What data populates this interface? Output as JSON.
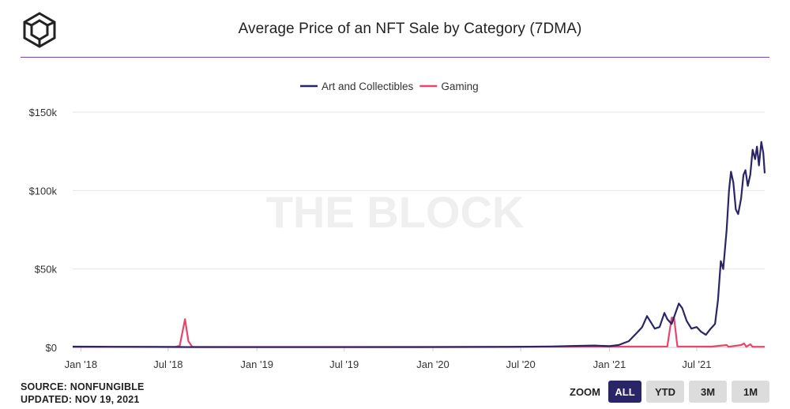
{
  "header": {
    "title": "Average Price of an NFT Sale by Category (7DMA)",
    "logo_icon": "cube-logo-icon"
  },
  "watermark": "THE BLOCK",
  "footer": {
    "source": "SOURCE: NONFUNGIBLE",
    "updated": "UPDATED: NOV 19, 2021"
  },
  "zoom": {
    "label": "ZOOM",
    "buttons": [
      "ALL",
      "YTD",
      "3M",
      "1M"
    ],
    "active": "ALL"
  },
  "colors": {
    "art": "#2a2566",
    "gaming": "#e8456b",
    "accent_line": "#8e2fd0"
  },
  "chart_data": {
    "type": "line",
    "title": "Average Price of an NFT Sale by Category (7DMA)",
    "xlabel": "",
    "ylabel": "",
    "ylim": [
      0,
      150000
    ],
    "xlim": [
      "2017-12-15",
      "2021-11-19"
    ],
    "y_ticks": [
      0,
      50000,
      100000,
      150000
    ],
    "y_tick_labels": [
      "$0",
      "$50k",
      "$100k",
      "$150k"
    ],
    "x_ticks": [
      "2018-01-01",
      "2018-07-01",
      "2019-01-01",
      "2019-07-01",
      "2020-01-01",
      "2020-07-01",
      "2021-01-01",
      "2021-07-01"
    ],
    "x_tick_labels": [
      "Jan '18",
      "Jul '18",
      "Jan '19",
      "Jul '19",
      "Jan '20",
      "Jul '20",
      "Jan '21",
      "Jul '21"
    ],
    "grid": true,
    "legend_position": "top-center",
    "series": [
      {
        "name": "Art and Collectibles",
        "color": "#2a2566",
        "points": [
          [
            "2017-12-15",
            500
          ],
          [
            "2018-03-01",
            400
          ],
          [
            "2018-06-01",
            300
          ],
          [
            "2018-09-01",
            200
          ],
          [
            "2019-01-01",
            150
          ],
          [
            "2019-06-01",
            150
          ],
          [
            "2019-12-01",
            200
          ],
          [
            "2020-06-01",
            300
          ],
          [
            "2020-09-01",
            600
          ],
          [
            "2020-11-01",
            1000
          ],
          [
            "2020-12-01",
            1200
          ],
          [
            "2021-01-01",
            800
          ],
          [
            "2021-01-20",
            1500
          ],
          [
            "2021-02-10",
            4000
          ],
          [
            "2021-03-01",
            10000
          ],
          [
            "2021-03-10",
            13000
          ],
          [
            "2021-03-20",
            20000
          ],
          [
            "2021-03-28",
            16000
          ],
          [
            "2021-04-05",
            12000
          ],
          [
            "2021-04-15",
            13000
          ],
          [
            "2021-04-25",
            22000
          ],
          [
            "2021-05-01",
            18000
          ],
          [
            "2021-05-10",
            15000
          ],
          [
            "2021-05-18",
            22000
          ],
          [
            "2021-05-25",
            28000
          ],
          [
            "2021-06-01",
            25000
          ],
          [
            "2021-06-10",
            17000
          ],
          [
            "2021-06-20",
            12000
          ],
          [
            "2021-07-01",
            13000
          ],
          [
            "2021-07-10",
            10000
          ],
          [
            "2021-07-20",
            8000
          ],
          [
            "2021-07-30",
            12000
          ],
          [
            "2021-08-08",
            15000
          ],
          [
            "2021-08-14",
            30000
          ],
          [
            "2021-08-20",
            55000
          ],
          [
            "2021-08-25",
            50000
          ],
          [
            "2021-09-01",
            75000
          ],
          [
            "2021-09-06",
            100000
          ],
          [
            "2021-09-10",
            112000
          ],
          [
            "2021-09-15",
            105000
          ],
          [
            "2021-09-20",
            88000
          ],
          [
            "2021-09-25",
            85000
          ],
          [
            "2021-10-01",
            95000
          ],
          [
            "2021-10-06",
            110000
          ],
          [
            "2021-10-10",
            113000
          ],
          [
            "2021-10-15",
            103000
          ],
          [
            "2021-10-20",
            110000
          ],
          [
            "2021-10-25",
            126000
          ],
          [
            "2021-10-30",
            120000
          ],
          [
            "2021-11-03",
            128000
          ],
          [
            "2021-11-07",
            116000
          ],
          [
            "2021-11-12",
            131000
          ],
          [
            "2021-11-16",
            124000
          ],
          [
            "2021-11-19",
            111000
          ]
        ]
      },
      {
        "name": "Gaming",
        "color": "#e8456b",
        "points": [
          [
            "2017-12-15",
            300
          ],
          [
            "2018-03-01",
            300
          ],
          [
            "2018-07-15",
            300
          ],
          [
            "2018-07-25",
            1000
          ],
          [
            "2018-08-05",
            18000
          ],
          [
            "2018-08-12",
            4000
          ],
          [
            "2018-08-20",
            300
          ],
          [
            "2019-01-01",
            300
          ],
          [
            "2020-01-01",
            300
          ],
          [
            "2020-06-01",
            400
          ],
          [
            "2021-01-01",
            500
          ],
          [
            "2021-05-01",
            600
          ],
          [
            "2021-05-10",
            19000
          ],
          [
            "2021-05-15",
            19000
          ],
          [
            "2021-05-22",
            600
          ],
          [
            "2021-08-01",
            500
          ],
          [
            "2021-09-01",
            1500
          ],
          [
            "2021-09-05",
            400
          ],
          [
            "2021-10-01",
            1500
          ],
          [
            "2021-10-07",
            2500
          ],
          [
            "2021-10-12",
            400
          ],
          [
            "2021-10-20",
            2000
          ],
          [
            "2021-10-25",
            400
          ],
          [
            "2021-11-19",
            400
          ]
        ]
      }
    ]
  }
}
